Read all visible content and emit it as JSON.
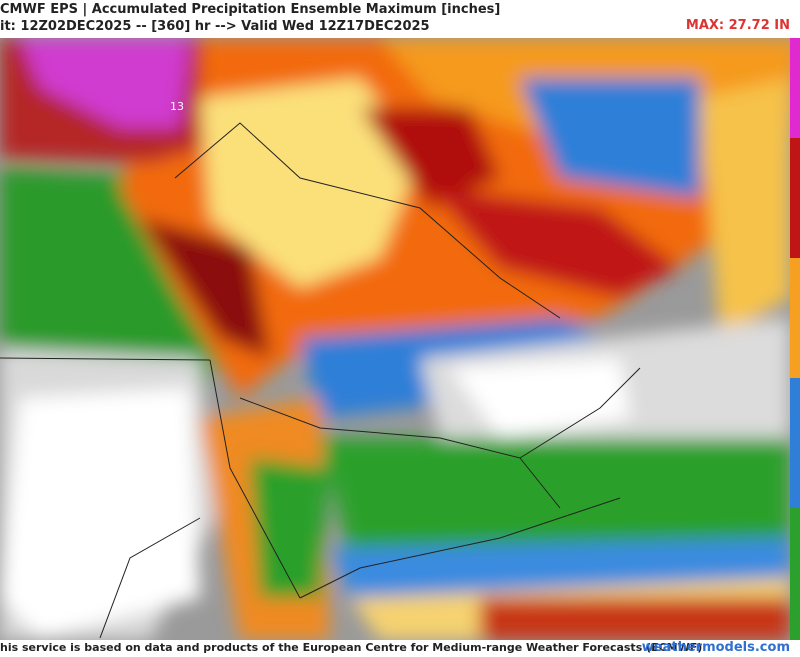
{
  "header": {
    "title": "CMWF EPS | Accumulated Precipitation Ensemble Maximum [inches]",
    "subtitle": "it: 12Z02DEC2025 -- [360] hr --> Valid Wed 12Z17DEC2025",
    "max_label": "MAX: 27.72 IN"
  },
  "map": {
    "point_label": "13"
  },
  "footer": {
    "credit": "his service is based on data and products of the European Centre for Medium-range Weather Forecasts (ECMWF)",
    "site": "weathermodels.com"
  }
}
